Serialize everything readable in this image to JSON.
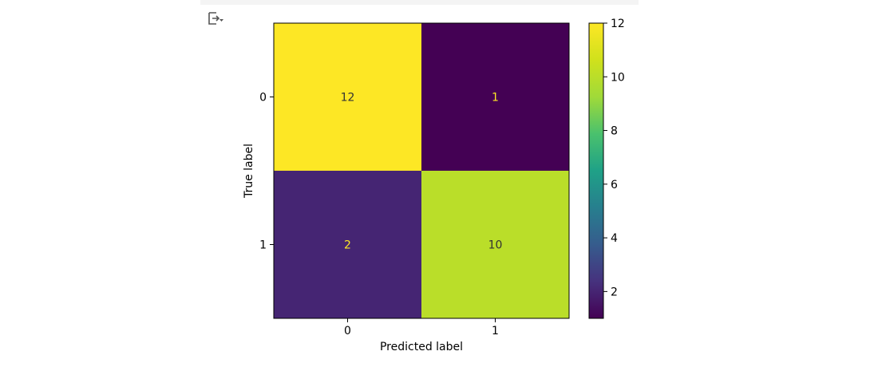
{
  "output_toggle": {
    "icon": "output-toggle-icon"
  },
  "chart_data": {
    "type": "heatmap",
    "title": "",
    "xlabel": "Predicted label",
    "ylabel": "True label",
    "x_categories": [
      "0",
      "1"
    ],
    "y_categories": [
      "0",
      "1"
    ],
    "matrix": [
      [
        12,
        1
      ],
      [
        2,
        10
      ]
    ],
    "colormap": "viridis",
    "colorbar": {
      "min": 1,
      "max": 12,
      "ticks": [
        "2",
        "4",
        "6",
        "8",
        "10",
        "12"
      ]
    },
    "grid": false,
    "text_colors": {
      "on_dark": "#fde725",
      "on_light": "#333333"
    }
  }
}
